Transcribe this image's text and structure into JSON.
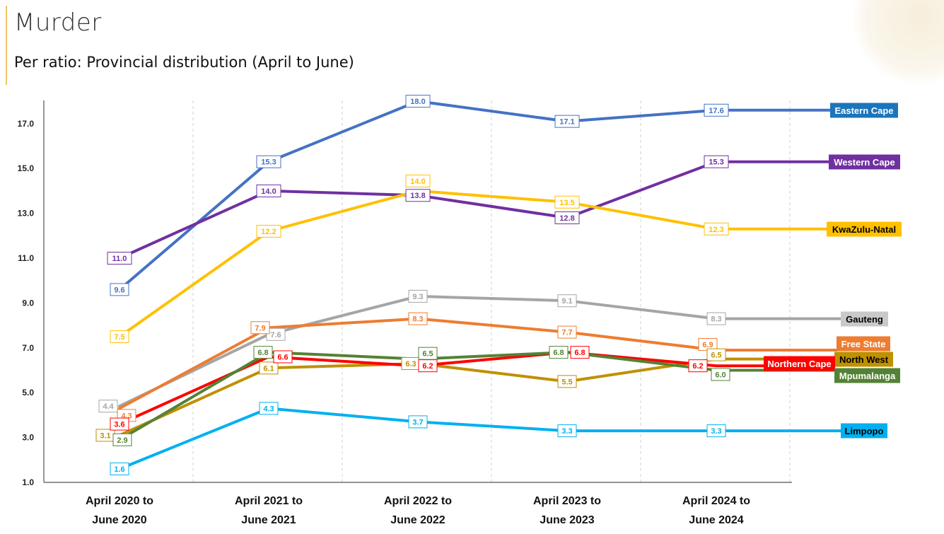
{
  "header": {
    "title": "Murder",
    "subtitle": "Per ratio: Provincial distribution (April to June)"
  },
  "chart_data": {
    "type": "line",
    "title": "Murder",
    "subtitle": "Per ratio: Provincial distribution (April to June)",
    "xlabel": "",
    "ylabel": "",
    "ylim": [
      1.0,
      18.0
    ],
    "yticks": [
      "1.0",
      "3.0",
      "5.0",
      "7.0",
      "9.0",
      "11.0",
      "13.0",
      "15.0",
      "17.0"
    ],
    "ytick_values": [
      1,
      3,
      5,
      7,
      9,
      11,
      13,
      15,
      17
    ],
    "categories": [
      [
        "April 2020 to",
        "June 2020"
      ],
      [
        "April 2021 to",
        "June 2021"
      ],
      [
        "April 2022 to",
        "June 2022"
      ],
      [
        "April 2023 to",
        "June 2023"
      ],
      [
        "April 2024 to",
        "June 2024"
      ]
    ],
    "grid": "vertical dashed",
    "legend": "labels at right end of each line",
    "series": [
      {
        "name": "Eastern Cape",
        "color": "#4472c4",
        "label_bg": "#1a75bc",
        "label_fg": "#ffffff",
        "values": [
          9.6,
          15.3,
          18.0,
          17.1,
          17.6
        ],
        "labels": [
          "9.6",
          "15.3",
          "18.0",
          "17.1",
          "17.6"
        ]
      },
      {
        "name": "Western Cape",
        "color": "#7030a0",
        "label_bg": "#7030a0",
        "label_fg": "#ffffff",
        "values": [
          11.0,
          14.0,
          13.8,
          12.8,
          15.3
        ],
        "labels": [
          "11.0",
          "14.0",
          "13.8",
          "12.8",
          "15.3"
        ]
      },
      {
        "name": "KwaZulu-Natal",
        "color": "#ffc000",
        "label_bg": "#ffc000",
        "label_fg": "#000000",
        "values": [
          7.5,
          12.2,
          14.0,
          13.5,
          12.3
        ],
        "labels": [
          "7.5",
          "12.2",
          "14.0",
          "13.5",
          "12.3"
        ]
      },
      {
        "name": "Gauteng",
        "color": "#a5a5a5",
        "label_bg": "#c9c9c9",
        "label_fg": "#000000",
        "values": [
          4.4,
          7.6,
          9.3,
          9.1,
          8.3
        ],
        "labels": [
          "4.4",
          "7.6",
          "9.3",
          "9.1",
          "8.3"
        ]
      },
      {
        "name": "Free State",
        "color": "#ed7d31",
        "label_bg": "#ed7d31",
        "label_fg": "#ffffff",
        "values": [
          4.3,
          7.9,
          8.3,
          7.7,
          6.9
        ],
        "labels": [
          "4.3",
          "7.9",
          "8.3",
          "7.7",
          "6.9"
        ]
      },
      {
        "name": "North West",
        "color": "#bf9000",
        "label_bg": "#bf9000",
        "label_fg": "#000000",
        "values": [
          3.1,
          6.1,
          6.3,
          5.5,
          6.5
        ],
        "labels": [
          "3.1",
          "6.1",
          "6.3",
          "5.5",
          "6.5"
        ]
      },
      {
        "name": "Northern Cape",
        "color": "#ff0000",
        "label_bg": "#ff0000",
        "label_fg": "#ffffff",
        "values": [
          3.6,
          6.6,
          6.2,
          6.8,
          6.2
        ],
        "labels": [
          "3.6",
          "6.6",
          "6.2",
          "6.8",
          "6.2"
        ]
      },
      {
        "name": "Mpumalanga",
        "color": "#548235",
        "label_bg": "#548235",
        "label_fg": "#ffffff",
        "values": [
          2.9,
          6.8,
          6.5,
          6.8,
          6.0
        ],
        "labels": [
          "2.9",
          "6.8",
          "6.5",
          "6.8",
          "6.0"
        ]
      },
      {
        "name": "Limpopo",
        "color": "#00b0f0",
        "label_bg": "#00b0f0",
        "label_fg": "#000000",
        "values": [
          1.6,
          4.3,
          3.7,
          3.3,
          3.3
        ],
        "labels": [
          "1.6",
          "4.3",
          "3.7",
          "3.3",
          "3.3"
        ]
      }
    ]
  }
}
